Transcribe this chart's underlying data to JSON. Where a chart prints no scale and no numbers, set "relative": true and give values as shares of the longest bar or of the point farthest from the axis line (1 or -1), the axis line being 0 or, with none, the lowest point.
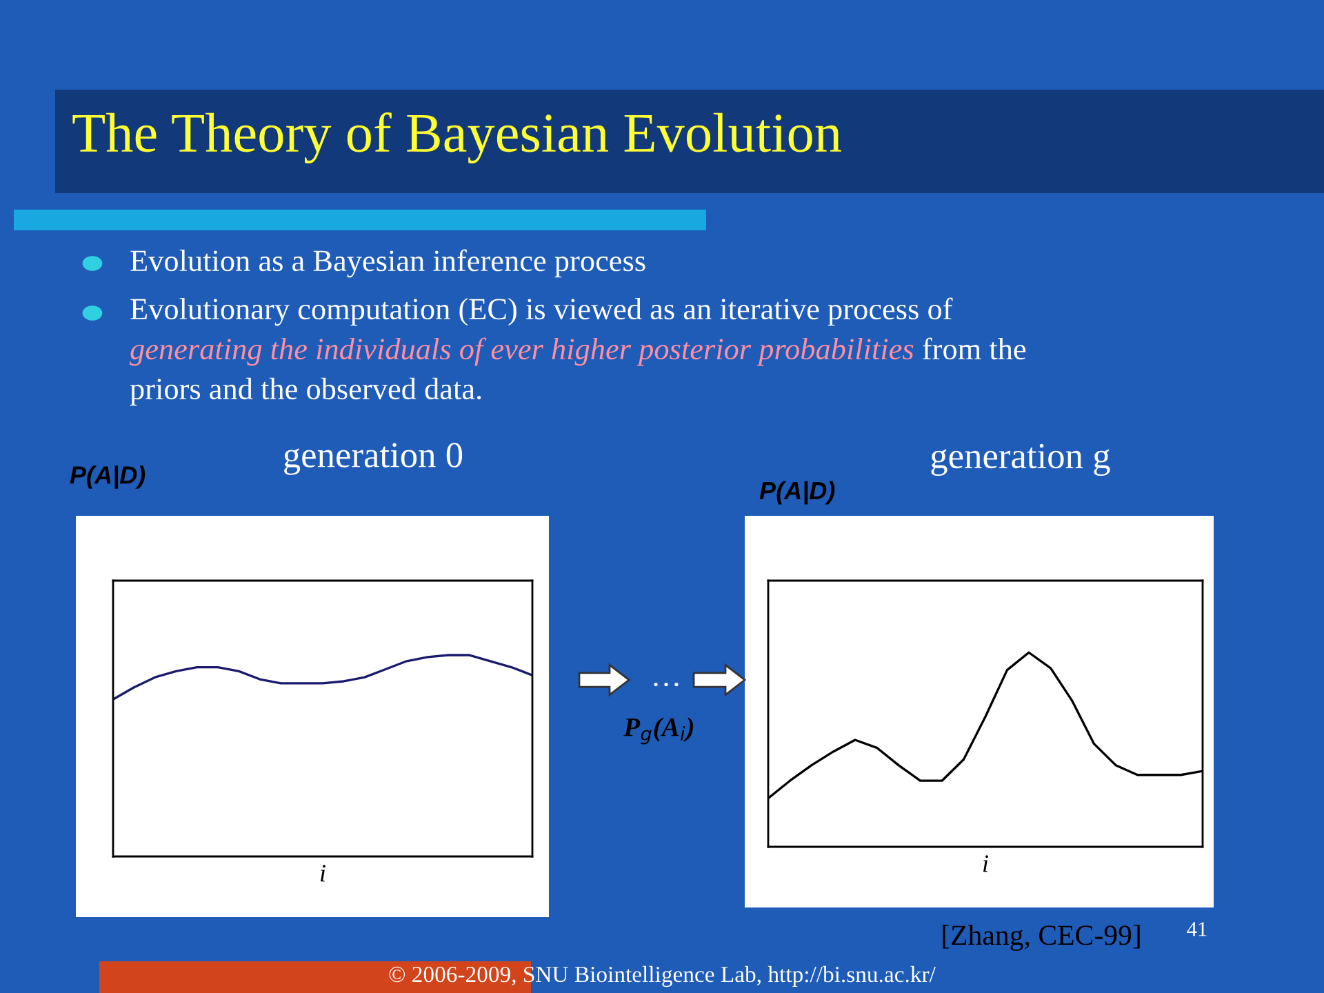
{
  "chart_data": [
    {
      "type": "line",
      "title": "generation 0",
      "xlabel": "i",
      "ylabel": "P(A|D)",
      "relative": true,
      "annotations": [
        "The Theory of Bayesian Evolution",
        "Evolution as a Bayesian inference process",
        "Evolutionary computation (EC) is viewed as an iterative process of",
        "generating the individuals of ever higher posterior probabilities",
        "from the",
        "priors and the observed data.",
        "…",
        "P$_{g}$(A$_{i}$)"
      ],
      "categories": [
        null,
        null,
        null,
        null,
        null,
        null,
        null,
        null,
        null,
        null,
        null,
        null,
        null,
        null,
        null,
        null,
        null,
        null,
        null,
        null,
        null
      ],
      "series": [
        {
          "color": "#1a1a6e",
          "values": [
            0.78,
            0.84,
            0.89,
            0.92,
            0.94,
            0.94,
            0.92,
            0.88,
            0.86,
            0.86,
            0.86,
            0.87,
            0.89,
            0.93,
            0.97,
            0.99,
            1.0,
            1.0,
            0.97,
            0.94,
            0.9
          ]
        }
      ]
    },
    {
      "type": "line",
      "title": "generation g",
      "xlabel": "i",
      "ylabel": "P(A|D)",
      "relative": true,
      "annotations": [
        "[Zhang, CEC-99]",
        "41",
        "© 2006-2009, SNU Biointelligence Lab, http://bi.snu.ac.kr/"
      ],
      "categories": [
        null,
        null,
        null,
        null,
        null,
        null,
        null,
        null,
        null,
        null,
        null,
        null,
        null,
        null,
        null,
        null,
        null,
        null,
        null,
        null,
        null
      ],
      "series": [
        {
          "color": "#000000",
          "values": [
            0.25,
            0.34,
            0.42,
            0.49,
            0.55,
            0.51,
            0.42,
            0.34,
            0.34,
            0.45,
            0.67,
            0.91,
            1.0,
            0.92,
            0.75,
            0.53,
            0.42,
            0.37,
            0.37,
            0.37,
            0.39
          ]
        }
      ]
    }
  ]
}
